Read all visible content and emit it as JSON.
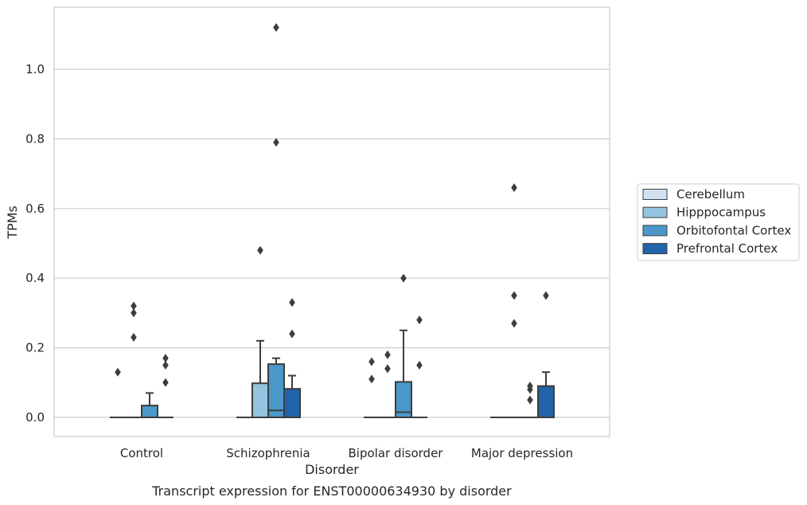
{
  "chart_data": {
    "type": "box",
    "title": "",
    "caption": "Transcript expression for ENST00000634930 by disorder",
    "xlabel": "Disorder",
    "ylabel": "TPMs",
    "ylim": [
      -0.055,
      1.18
    ],
    "yticks": [
      0.0,
      0.2,
      0.4,
      0.6,
      0.8,
      1.0
    ],
    "ytick_labels": [
      "0.0",
      "0.2",
      "0.4",
      "0.6",
      "0.8",
      "1.0"
    ],
    "grid": "horizontal",
    "legend_position": "right",
    "categories": [
      "Control",
      "Schizophrenia",
      "Bipolar disorder",
      "Major depression"
    ],
    "series": [
      {
        "name": "Cerebellum",
        "color": "#d0e1f2",
        "boxes": [
          {
            "q1": 0,
            "median": 0,
            "q3": 0,
            "whislo": 0,
            "whishi": 0,
            "fliers": [
              0.13
            ]
          },
          {
            "q1": 0,
            "median": 0,
            "q3": 0,
            "whislo": 0,
            "whishi": 0,
            "fliers": []
          },
          {
            "q1": 0,
            "median": 0,
            "q3": 0,
            "whislo": 0,
            "whishi": 0,
            "fliers": [
              0.16,
              0.11
            ]
          },
          {
            "q1": 0,
            "median": 0,
            "q3": 0,
            "whislo": 0,
            "whishi": 0,
            "fliers": []
          }
        ]
      },
      {
        "name": "Hipppocampus",
        "color": "#94c4df",
        "boxes": [
          {
            "q1": 0,
            "median": 0,
            "q3": 0,
            "whislo": 0,
            "whishi": 0,
            "fliers": [
              0.32,
              0.3,
              0.23
            ]
          },
          {
            "q1": 0,
            "median": 0,
            "q3": 0.098,
            "whislo": 0,
            "whishi": 0.22,
            "fliers": [
              0.48
            ]
          },
          {
            "q1": 0,
            "median": 0,
            "q3": 0,
            "whislo": 0,
            "whishi": 0,
            "fliers": [
              0.18,
              0.14
            ]
          },
          {
            "q1": 0,
            "median": 0,
            "q3": 0,
            "whislo": 0,
            "whishi": 0,
            "fliers": [
              0.66,
              0.35,
              0.27
            ]
          }
        ]
      },
      {
        "name": "Orbitofontal Cortex",
        "color": "#4a98c9",
        "boxes": [
          {
            "q1": 0,
            "median": 0,
            "q3": 0.034,
            "whislo": 0,
            "whishi": 0.07,
            "fliers": []
          },
          {
            "q1": 0,
            "median": 0.02,
            "q3": 0.153,
            "whislo": 0,
            "whishi": 0.17,
            "fliers": [
              1.12,
              0.79
            ]
          },
          {
            "q1": 0,
            "median": 0.015,
            "q3": 0.102,
            "whislo": 0,
            "whishi": 0.25,
            "fliers": [
              0.4
            ]
          },
          {
            "q1": 0,
            "median": 0,
            "q3": 0,
            "whislo": 0,
            "whishi": 0,
            "fliers": [
              0.09,
              0.08,
              0.05
            ]
          }
        ]
      },
      {
        "name": "Prefrontal Cortex",
        "color": "#2264aa",
        "boxes": [
          {
            "q1": 0,
            "median": 0,
            "q3": 0,
            "whislo": 0,
            "whishi": 0,
            "fliers": [
              0.17,
              0.15,
              0.1
            ]
          },
          {
            "q1": 0,
            "median": 0,
            "q3": 0.082,
            "whislo": 0,
            "whishi": 0.12,
            "fliers": [
              0.33,
              0.24
            ]
          },
          {
            "q1": 0,
            "median": 0,
            "q3": 0,
            "whislo": 0,
            "whishi": 0,
            "fliers": [
              0.28,
              0.15
            ]
          },
          {
            "q1": 0,
            "median": 0,
            "q3": 0.09,
            "whislo": 0,
            "whishi": 0.13,
            "fliers": [
              0.35
            ]
          }
        ]
      }
    ]
  }
}
